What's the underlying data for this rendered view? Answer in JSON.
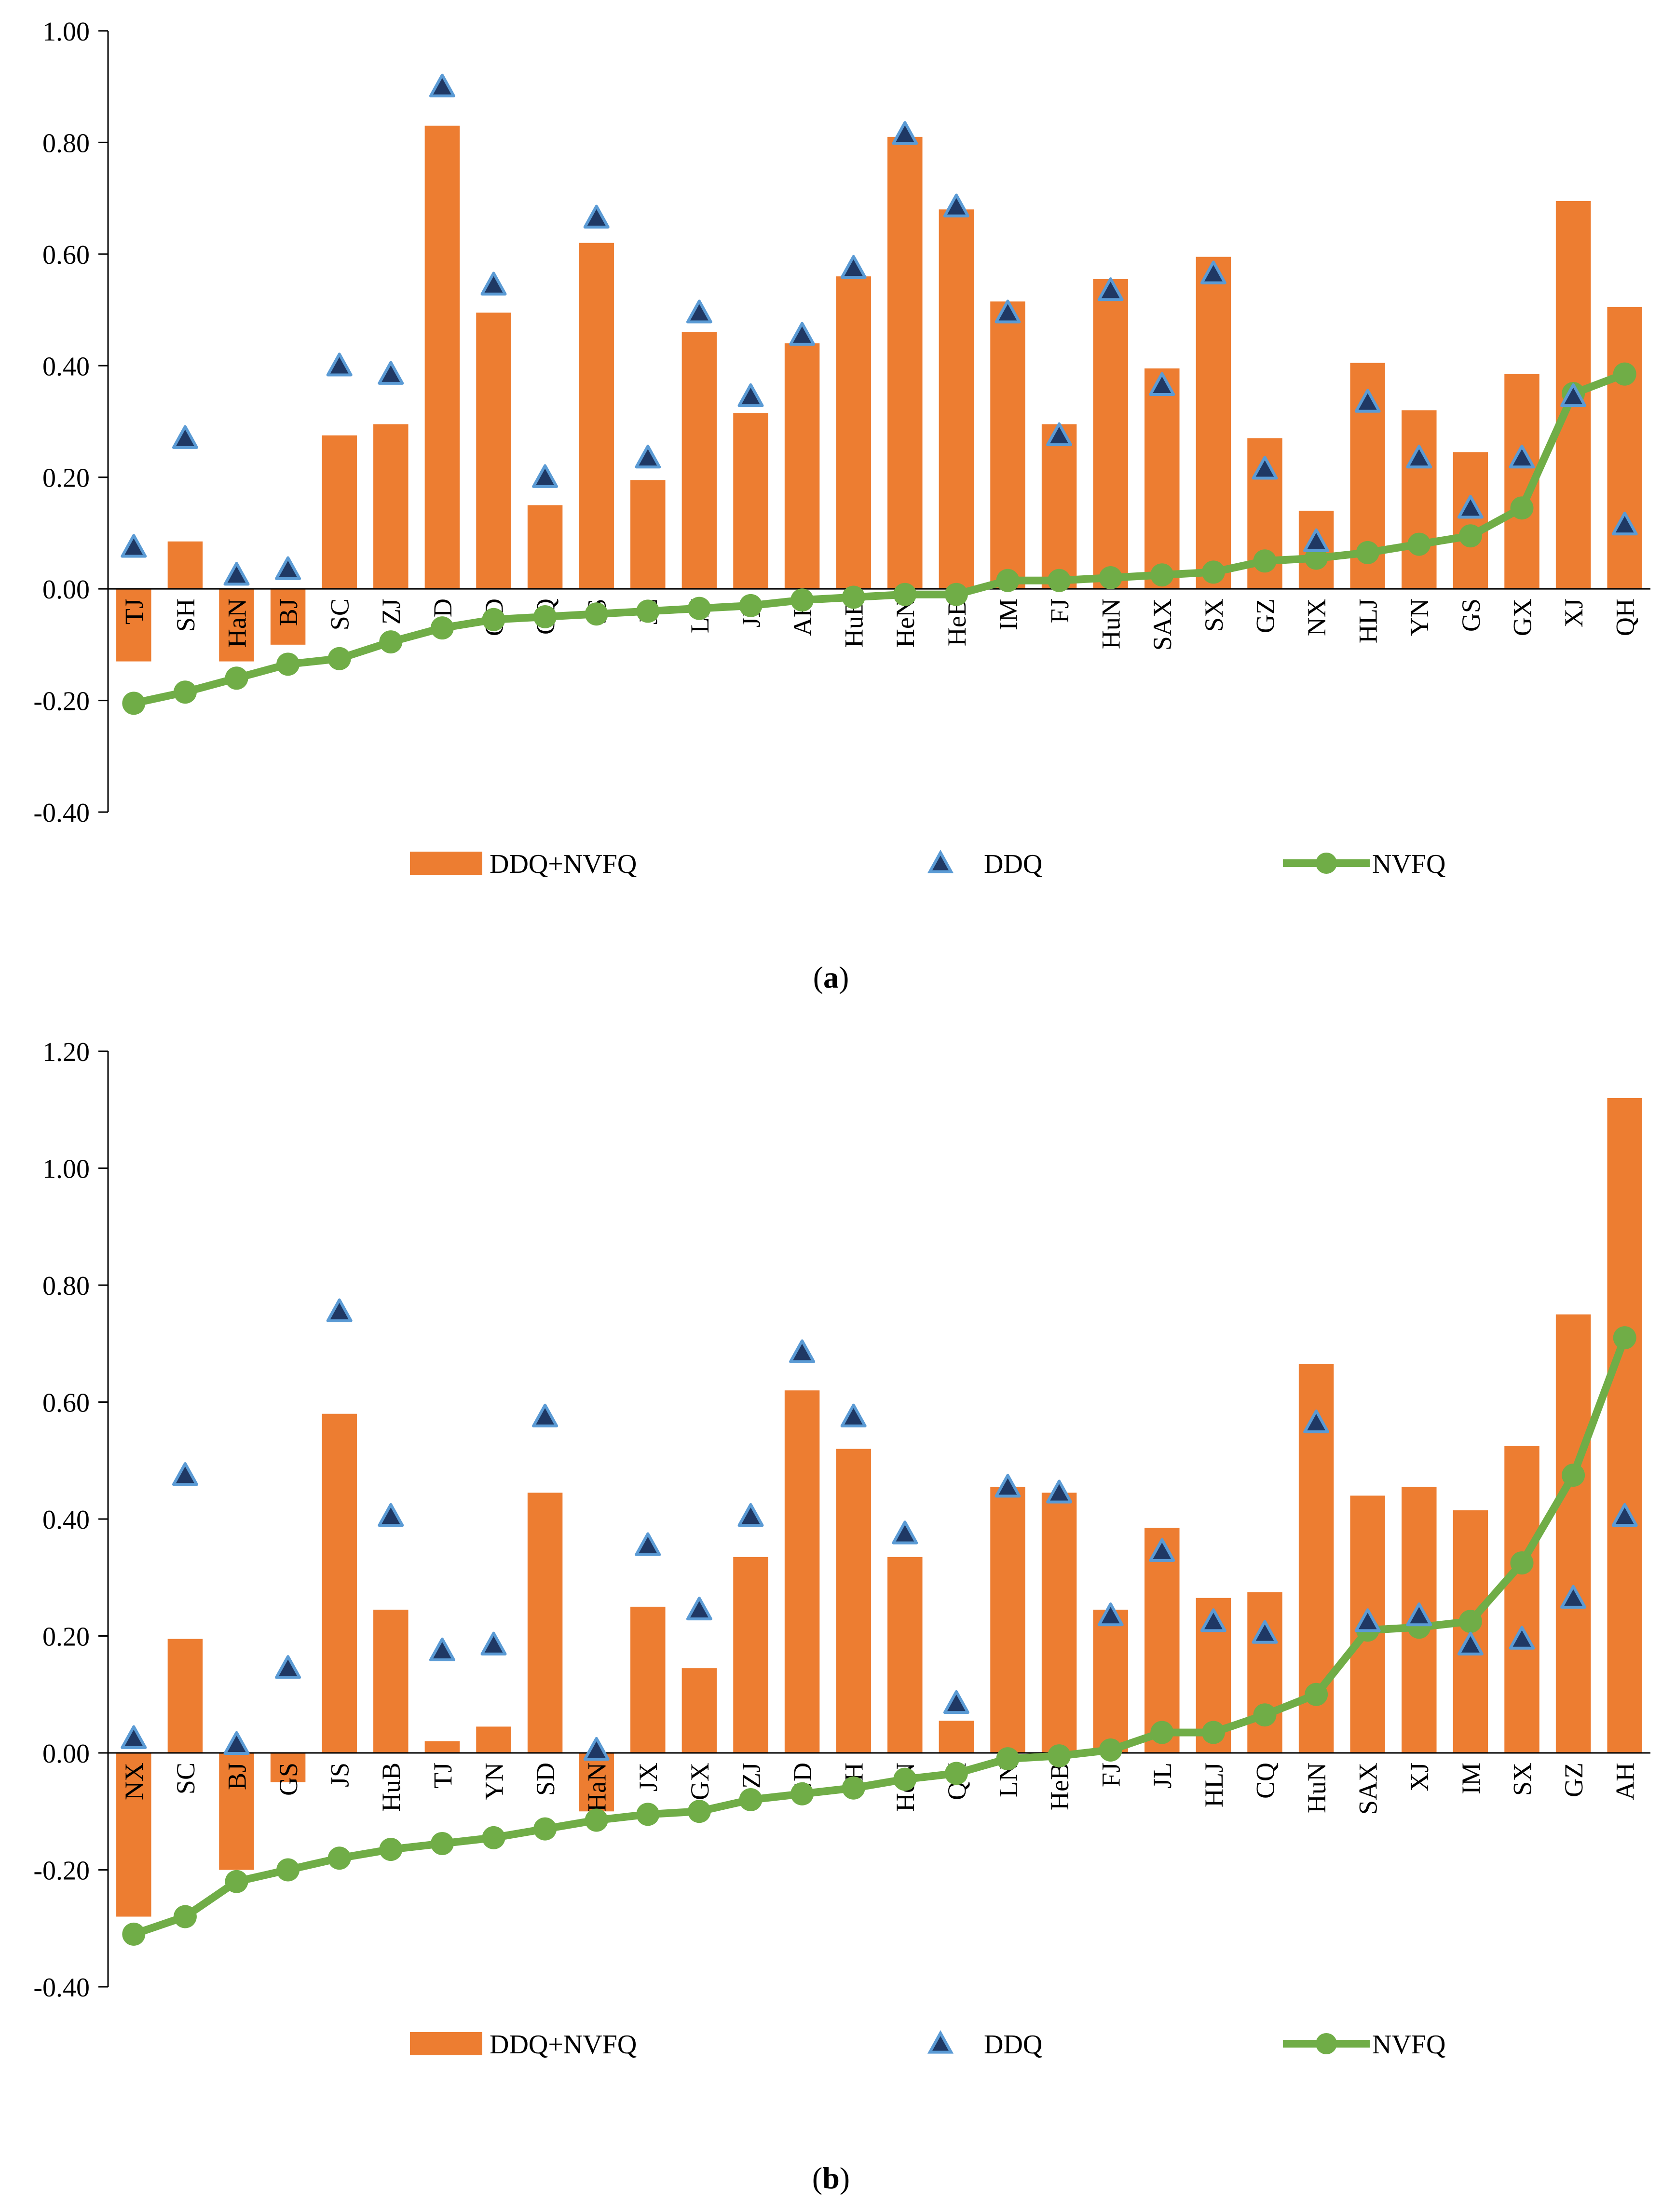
{
  "chart_data": [
    {
      "panel": "a",
      "type": "bar",
      "caption": "a",
      "ylim": [
        -0.4,
        1.0
      ],
      "yticks": [
        "-0.40",
        "-0.20",
        "0.00",
        "0.20",
        "0.40",
        "0.60",
        "0.80",
        "1.00"
      ],
      "grid": false,
      "legend_position": "bottom",
      "categories": [
        "TJ",
        "SH",
        "HaN",
        "BJ",
        "SC",
        "ZJ",
        "SD",
        "GD",
        "CQ",
        "JS",
        "JL",
        "LN",
        "JX",
        "AH",
        "HuB",
        "HeN",
        "HeB",
        "IM",
        "FJ",
        "HuN",
        "SAX",
        "SX",
        "GZ",
        "NX",
        "HLJ",
        "YN",
        "GS",
        "GX",
        "XJ",
        "QH"
      ],
      "series": [
        {
          "name": "DDQ+NVFQ",
          "kind": "bar",
          "color": "#ED7D31",
          "values": [
            -0.13,
            0.085,
            -0.13,
            -0.1,
            0.275,
            0.295,
            0.83,
            0.495,
            0.15,
            0.62,
            0.195,
            0.46,
            0.315,
            0.44,
            0.56,
            0.81,
            0.68,
            0.515,
            0.295,
            0.555,
            0.395,
            0.595,
            0.27,
            0.14,
            0.405,
            0.32,
            0.245,
            0.385,
            0.695,
            0.505
          ]
        },
        {
          "name": "DDQ",
          "kind": "marker",
          "color": "#1F3864",
          "edge": "#5B9BD5",
          "values": [
            0.075,
            0.27,
            0.025,
            0.035,
            0.4,
            0.385,
            0.9,
            0.545,
            0.2,
            0.665,
            0.235,
            0.495,
            0.345,
            0.455,
            0.575,
            0.815,
            0.685,
            0.495,
            0.275,
            0.535,
            0.365,
            0.565,
            0.215,
            0.085,
            0.335,
            0.235,
            0.145,
            0.235,
            0.345,
            0.115
          ]
        },
        {
          "name": "NVFQ",
          "kind": "line",
          "color": "#70AD47",
          "values": [
            -0.205,
            -0.185,
            -0.16,
            -0.135,
            -0.125,
            -0.095,
            -0.07,
            -0.055,
            -0.05,
            -0.045,
            -0.04,
            -0.035,
            -0.03,
            -0.02,
            -0.015,
            -0.01,
            -0.01,
            0.015,
            0.015,
            0.02,
            0.025,
            0.03,
            0.05,
            0.055,
            0.065,
            0.08,
            0.095,
            0.145,
            0.35,
            0.385
          ]
        }
      ]
    },
    {
      "panel": "b",
      "type": "bar",
      "caption": "b",
      "ylim": [
        -0.4,
        1.2
      ],
      "yticks": [
        "-0.40",
        "-0.20",
        "0.00",
        "0.20",
        "0.40",
        "0.60",
        "0.80",
        "1.00",
        "1.20"
      ],
      "grid": false,
      "legend_position": "bottom",
      "categories": [
        "NX",
        "SC",
        "BJ",
        "GS",
        "JS",
        "HuB",
        "TJ",
        "YN",
        "SD",
        "HaN",
        "JX",
        "GX",
        "ZJ",
        "GD",
        "SH",
        "HeN",
        "QH",
        "LN",
        "HeB",
        "FJ",
        "JL",
        "HLJ",
        "CQ",
        "HuN",
        "SAX",
        "XJ",
        "IM",
        "SX",
        "GZ",
        "AH"
      ],
      "series": [
        {
          "name": "DDQ+NVFQ",
          "kind": "bar",
          "color": "#ED7D31",
          "values": [
            -0.28,
            0.195,
            -0.2,
            -0.05,
            0.58,
            0.245,
            0.02,
            0.045,
            0.445,
            -0.1,
            0.25,
            0.145,
            0.335,
            0.62,
            0.52,
            0.335,
            0.055,
            0.455,
            0.445,
            0.245,
            0.385,
            0.265,
            0.275,
            0.665,
            0.44,
            0.455,
            0.415,
            0.525,
            0.75,
            1.12
          ]
        },
        {
          "name": "DDQ",
          "kind": "marker",
          "color": "#1F3864",
          "edge": "#5B9BD5",
          "values": [
            0.025,
            0.475,
            0.015,
            0.145,
            0.755,
            0.405,
            0.175,
            0.185,
            0.575,
            0.005,
            0.355,
            0.245,
            0.405,
            0.685,
            0.575,
            0.375,
            0.085,
            0.455,
            0.445,
            0.235,
            0.345,
            0.225,
            0.205,
            0.565,
            0.225,
            0.235,
            0.185,
            0.195,
            0.265,
            0.405
          ]
        },
        {
          "name": "NVFQ",
          "kind": "line",
          "color": "#70AD47",
          "values": [
            -0.31,
            -0.28,
            -0.22,
            -0.2,
            -0.18,
            -0.165,
            -0.155,
            -0.145,
            -0.13,
            -0.115,
            -0.105,
            -0.1,
            -0.08,
            -0.07,
            -0.06,
            -0.045,
            -0.035,
            -0.01,
            -0.005,
            0.005,
            0.035,
            0.035,
            0.065,
            0.1,
            0.21,
            0.215,
            0.225,
            0.325,
            0.475,
            0.71
          ]
        }
      ]
    }
  ]
}
